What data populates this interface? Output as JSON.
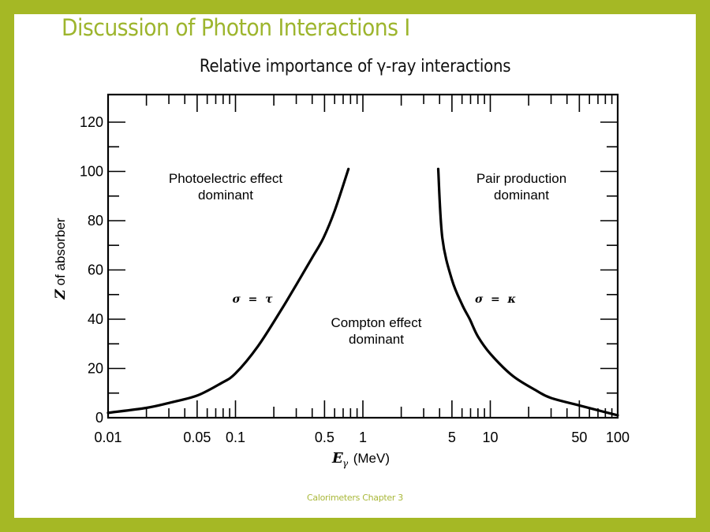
{
  "slide": {
    "title": "Discussion of Photon Interactions I",
    "footer": "Calorimeters Chapter 3",
    "colors": {
      "frame": "#a5b825",
      "title": "#9db52d",
      "footer": "#a9b83a",
      "background": "#ffffff",
      "ink": "#000000"
    }
  },
  "chart_data": {
    "type": "line",
    "title": "Relative importance of γ-ray interactions",
    "xlabel": "Eγ (MeV)",
    "ylabel": "Z of absorber",
    "xscale": "log",
    "xlim": [
      0.01,
      100
    ],
    "ylim": [
      0,
      130
    ],
    "xticks_labeled": [
      "0.01",
      "0.05",
      "0.1",
      "0.5",
      "1",
      "5",
      "10",
      "50",
      "100"
    ],
    "yticks_labeled": [
      "0",
      "20",
      "40",
      "60",
      "80",
      "100",
      "120"
    ],
    "grid": false,
    "legend": null,
    "series": [
      {
        "name": "σ = τ",
        "description": "Boundary where photoelectric and Compton cross sections are equal",
        "x": [
          0.01,
          0.02,
          0.03,
          0.05,
          0.077,
          0.1,
          0.15,
          0.23,
          0.3,
          0.4,
          0.49,
          0.6,
          0.77
        ],
        "y": [
          2,
          4,
          6,
          9,
          14,
          18,
          29,
          44,
          54,
          65,
          73,
          84,
          101
        ]
      },
      {
        "name": "σ = κ",
        "description": "Boundary where Compton and pair production cross sections are equal",
        "x": [
          3.9,
          4.2,
          5,
          6,
          6.9,
          8,
          10,
          15,
          23,
          30,
          50,
          70,
          100
        ],
        "y": [
          101,
          73,
          56,
          46,
          40,
          33,
          26,
          17,
          11,
          8,
          5,
          3,
          1
        ]
      }
    ],
    "annotations": [
      {
        "text": "Photoelectric effect\ndominant",
        "region": "upper-left"
      },
      {
        "text": "Compton effect\ndominant",
        "region": "center"
      },
      {
        "text": "Pair production\ndominant",
        "region": "upper-right"
      },
      {
        "text": "σ = τ",
        "near_series": 0
      },
      {
        "text": "σ = κ",
        "near_series": 1
      }
    ]
  },
  "labels": {
    "photo_1": "Photoelectric effect",
    "photo_2": "dominant",
    "compton_1": "Compton effect",
    "compton_2": "dominant",
    "pair_1": "Pair production",
    "pair_2": "dominant",
    "sigma_tau": "σ  =  τ",
    "sigma_kappa": "σ  =  κ",
    "x_axis_label_main": "E",
    "x_axis_label_sub": "γ",
    "x_axis_label_unit": " (MeV)",
    "y_axis_label_var": "Z",
    "y_axis_label_rest": " of absorber"
  }
}
